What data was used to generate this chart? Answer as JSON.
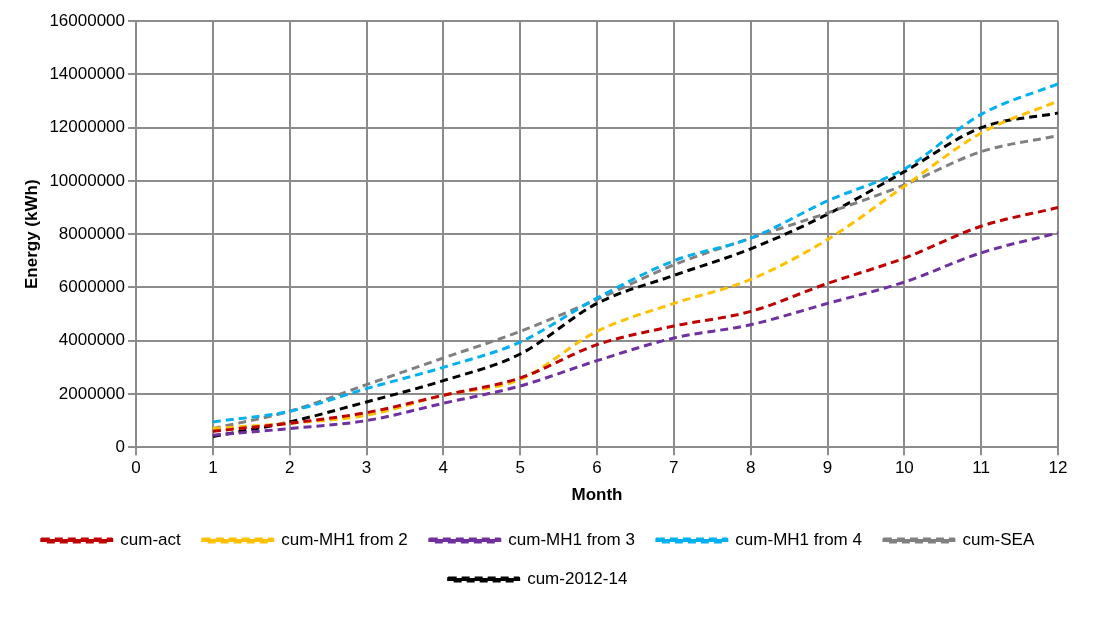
{
  "chart_data": {
    "type": "line",
    "xlabel": "Month",
    "ylabel": "Energy (kWh)",
    "x": [
      1,
      2,
      3,
      4,
      5,
      6,
      7,
      8,
      9,
      10,
      11,
      12
    ],
    "xlim": [
      0,
      12
    ],
    "xticks": [
      0,
      1,
      2,
      3,
      4,
      5,
      6,
      7,
      8,
      9,
      10,
      11,
      12
    ],
    "ylim": [
      0,
      16000000
    ],
    "yticks": [
      0,
      2000000,
      4000000,
      6000000,
      8000000,
      10000000,
      12000000,
      14000000,
      16000000
    ],
    "grid": true,
    "legend": "bottom",
    "marker": "none",
    "line_style": "dashed",
    "series": [
      {
        "name": "cum-act",
        "color": "#c00000",
        "values": [
          600000,
          900000,
          1300000,
          1950000,
          2600000,
          3850000,
          4550000,
          5100000,
          6150000,
          7100000,
          8300000,
          9000000
        ]
      },
      {
        "name": "cum-MH1 from 2",
        "color": "#ffc000",
        "values": [
          700000,
          900000,
          1200000,
          1950000,
          2550000,
          4350000,
          5400000,
          6300000,
          7800000,
          9800000,
          11800000,
          13000000
        ]
      },
      {
        "name": "cum-MH1 from 3",
        "color": "#7030a0",
        "values": [
          450000,
          700000,
          1000000,
          1650000,
          2300000,
          3250000,
          4100000,
          4600000,
          5400000,
          6200000,
          7300000,
          8050000
        ]
      },
      {
        "name": "cum-MH1 from 4",
        "color": "#00b0f0",
        "values": [
          950000,
          1350000,
          2200000,
          3000000,
          3950000,
          5600000,
          7000000,
          7850000,
          9250000,
          10450000,
          12500000,
          13650000
        ]
      },
      {
        "name": "cum-SEA",
        "color": "#808080",
        "values": [
          700000,
          1350000,
          2350000,
          3350000,
          4350000,
          5550000,
          6850000,
          7850000,
          8800000,
          9850000,
          11100000,
          11700000
        ]
      },
      {
        "name": "cum-2012-14",
        "color": "#000000",
        "values": [
          400000,
          950000,
          1700000,
          2500000,
          3500000,
          5400000,
          6450000,
          7450000,
          8750000,
          10350000,
          12000000,
          12550000
        ]
      }
    ]
  }
}
